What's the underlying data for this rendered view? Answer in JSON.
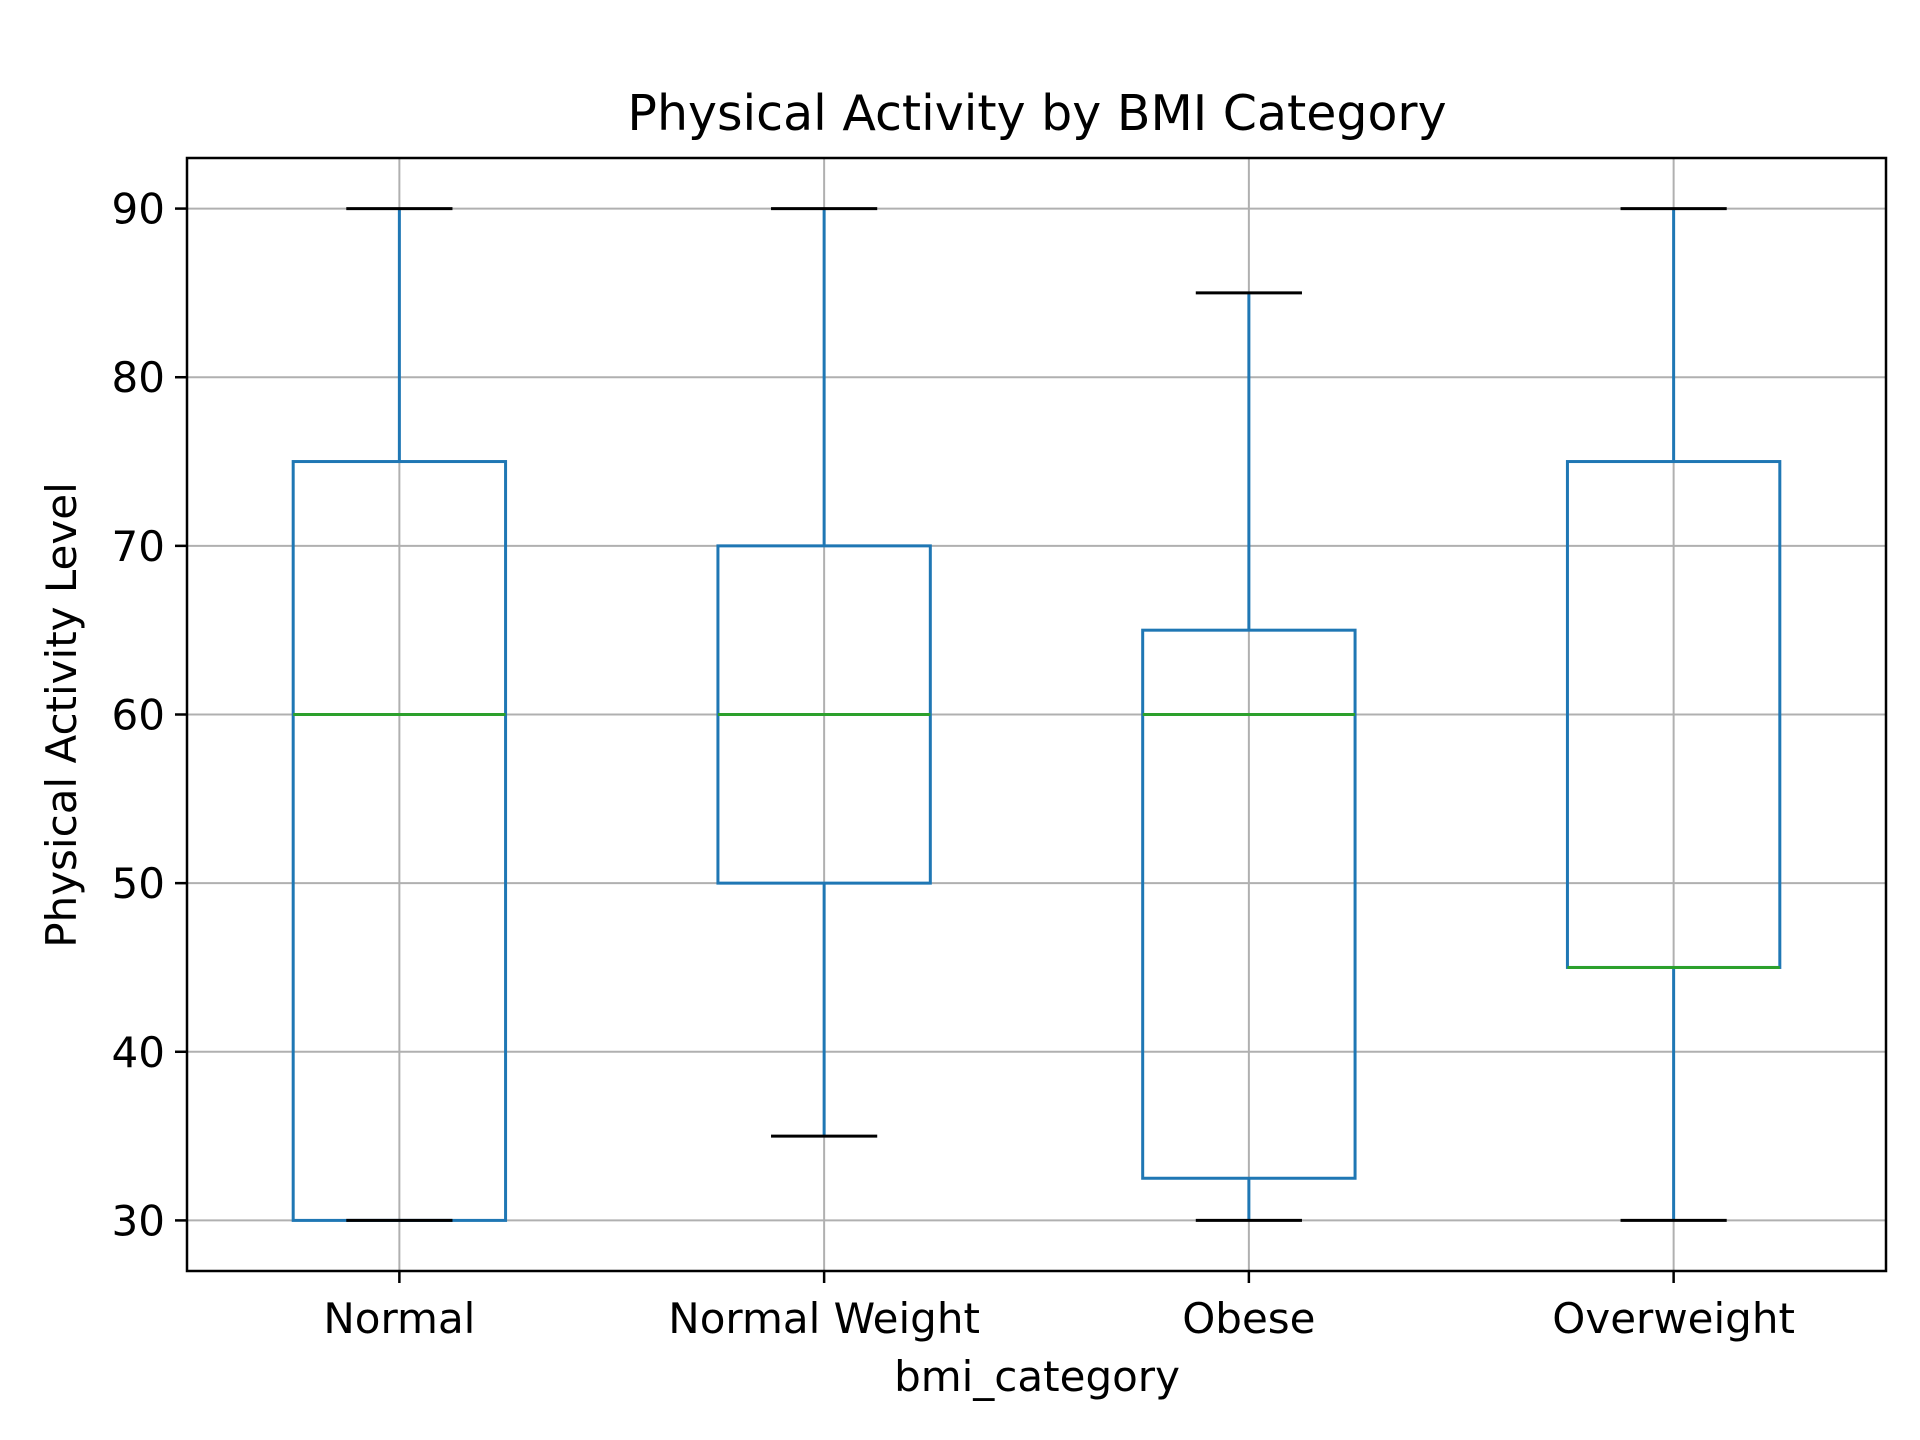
{
  "chart_data": {
    "type": "box",
    "title": "Physical Activity by BMI Category",
    "xlabel": "bmi_category",
    "ylabel": "Physical Activity Level",
    "ylim": [
      27,
      93
    ],
    "yticks": [
      30,
      40,
      50,
      60,
      70,
      80,
      90
    ],
    "grid": true,
    "categories": [
      "Normal",
      "Normal Weight",
      "Obese",
      "Overweight"
    ],
    "boxes": [
      {
        "category": "Normal",
        "whisker_low": 30,
        "q1": 30,
        "median": 60,
        "q3": 75,
        "whisker_high": 90
      },
      {
        "category": "Normal Weight",
        "whisker_low": 35,
        "q1": 50,
        "median": 60,
        "q3": 70,
        "whisker_high": 90
      },
      {
        "category": "Obese",
        "whisker_low": 30,
        "q1": 32.5,
        "median": 60,
        "q3": 65,
        "whisker_high": 85
      },
      {
        "category": "Overweight",
        "whisker_low": 30,
        "q1": 45,
        "median": 45,
        "q3": 75,
        "whisker_high": 90
      }
    ],
    "colors": {
      "box": "#1f77b4",
      "median": "#2ca02c",
      "cap": "#000000",
      "grid": "#b0b0b0",
      "axes": "#000000"
    }
  }
}
